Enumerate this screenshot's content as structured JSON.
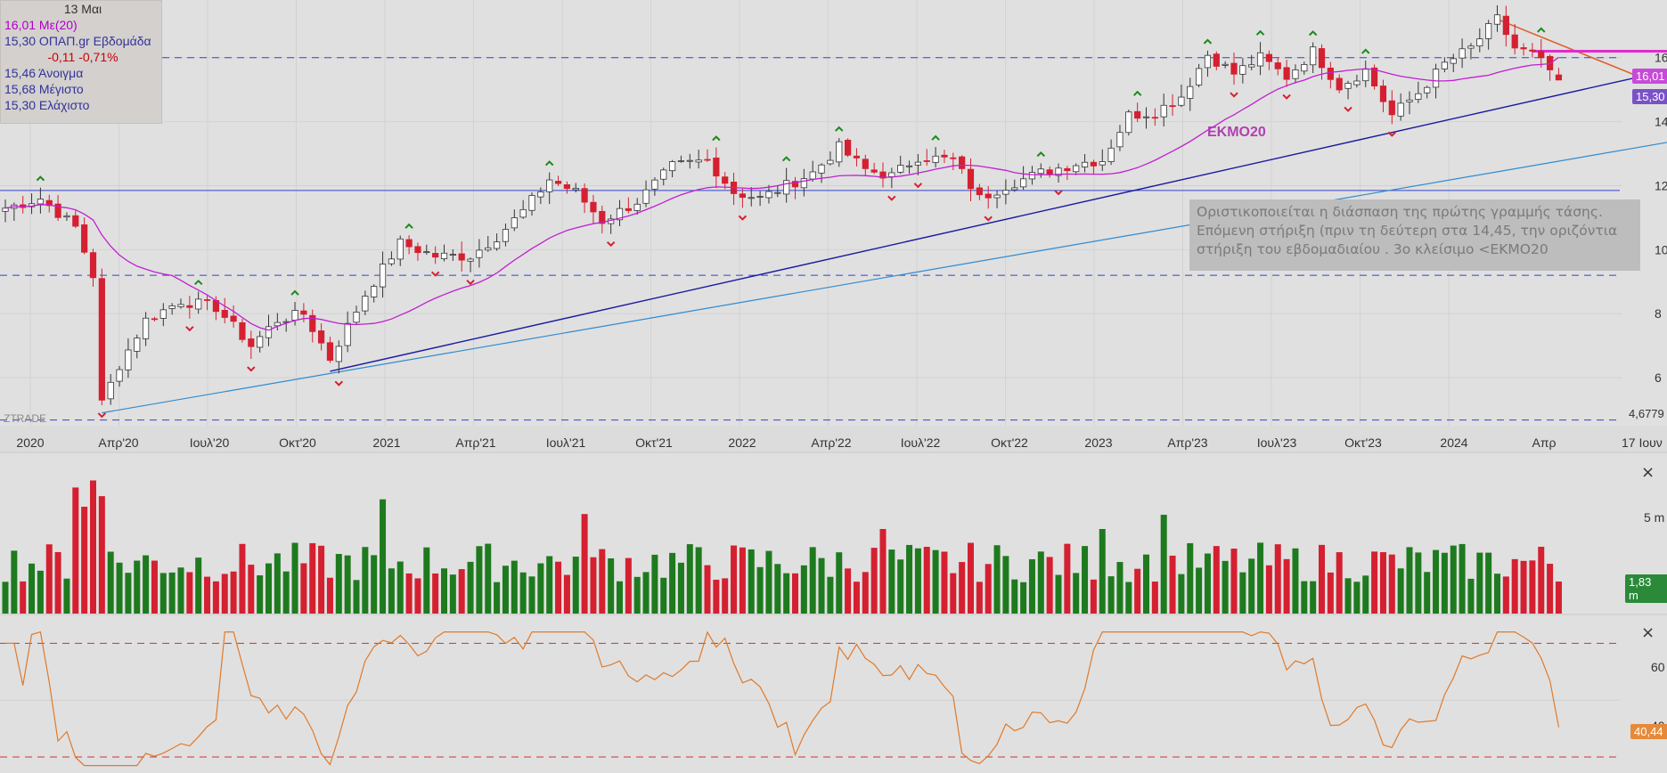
{
  "info_panel": {
    "date": "13 Μαι",
    "ma_line": "16,01 Με(20)",
    "close_line": "15,30 ΟΠΑΠ.gr Εβδομάδα",
    "change_line": "-0,11 -0,71%",
    "open_line": "15,46 Άνοιγμα",
    "high_line": "15,68 Μέγιστο",
    "low_line": "15,30 Ελάχιστο"
  },
  "annotations": {
    "emo_label": "ΕΚΜΟ20",
    "note_line1": "Οριστικοποιείται η διάσπαση της πρώτης γραμμής τάσης.",
    "note_line2": "Επόμενη στήριξη (πριν τη δεύτερη στα 14,45, την οριζόντια",
    "note_line3": "στήριξη του εβδομαδιαίου . 3ο κλείσιμο <ΕΚΜΟ20",
    "watermark": "ZTRADE"
  },
  "price_axis": {
    "ticks": [
      "16",
      "14",
      "12",
      "10",
      "8",
      "6"
    ],
    "min_label": "4,6779",
    "badge_ma": "16,01",
    "badge_close": "15,30"
  },
  "time_axis": {
    "labels": [
      "2020",
      "Απρ'20",
      "Ιουλ'20",
      "Οκτ'20",
      "2021",
      "Απρ'21",
      "Ιουλ'21",
      "Οκτ'21",
      "2022",
      "Απρ'22",
      "Ιουλ'22",
      "Οκτ'22",
      "2023",
      "Απρ'23",
      "Ιουλ'23",
      "Οκτ'23",
      "2024",
      "Απρ"
    ],
    "end_label": "17 Ιουν"
  },
  "volume_pane": {
    "tick": "5 m",
    "badge": "1,83 m",
    "close_icon": "×"
  },
  "rsi_pane": {
    "tick": "60",
    "tick_low": "40",
    "badge": "40,44",
    "close_icon": "×"
  },
  "colors": {
    "background": "#e0e0e0",
    "up": "#ffffff",
    "down": "#d42030",
    "vol_up": "#1e7a1e",
    "vol_down": "#d42030",
    "ma": "#c020d0",
    "trendline_dark": "#1a1aa0",
    "trendline_light": "#2f8ad0",
    "hline": "#3344cc",
    "rsi": "#e07a2a",
    "rsi_band": "#cc3333",
    "swing_high": "#1a8a1a",
    "swing_low": "#d42030"
  },
  "chart_data": {
    "type": "candlestick",
    "symbol": "ΟΠΑΠ.gr",
    "interval": "Εβδομάδα",
    "indicators": [
      "Με(20)",
      "Volume",
      "RSI"
    ],
    "last_bar": {
      "date": "13 Μαι",
      "open": 15.46,
      "high": 15.68,
      "low": 15.3,
      "close": 15.3,
      "change": -0.11,
      "change_pct": -0.71
    },
    "ma20_last": 16.01,
    "volume_last": "1,83 m",
    "rsi_last": 40.44,
    "price_ylim": [
      4.5,
      17.8
    ],
    "rsi_ylim": [
      25,
      77
    ],
    "rsi_bands": [
      70,
      30
    ],
    "horizontal_levels": [
      16.0,
      11.85,
      9.2,
      4.6779
    ],
    "close_anchors": [
      [
        0,
        11.3
      ],
      [
        4,
        11.6
      ],
      [
        8,
        10.7
      ],
      [
        10,
        9.2
      ],
      [
        11,
        5.2
      ],
      [
        13,
        6.4
      ],
      [
        16,
        7.8
      ],
      [
        20,
        8.4
      ],
      [
        24,
        8.2
      ],
      [
        28,
        7.0
      ],
      [
        31,
        7.8
      ],
      [
        34,
        8.0
      ],
      [
        37,
        6.6
      ],
      [
        41,
        8.6
      ],
      [
        45,
        10.2
      ],
      [
        49,
        9.8
      ],
      [
        53,
        9.8
      ],
      [
        56,
        10.4
      ],
      [
        59,
        11.2
      ],
      [
        62,
        12.2
      ],
      [
        65,
        11.8
      ],
      [
        68,
        10.9
      ],
      [
        72,
        11.5
      ],
      [
        76,
        12.6
      ],
      [
        80,
        12.8
      ],
      [
        83,
        11.8
      ],
      [
        86,
        11.6
      ],
      [
        89,
        12.0
      ],
      [
        92,
        12.4
      ],
      [
        95,
        13.2
      ],
      [
        98,
        12.5
      ],
      [
        101,
        12.3
      ],
      [
        104,
        12.9
      ],
      [
        108,
        12.8
      ],
      [
        111,
        11.6
      ],
      [
        114,
        12.0
      ],
      [
        118,
        12.4
      ],
      [
        122,
        12.7
      ],
      [
        125,
        12.8
      ],
      [
        128,
        14.2
      ],
      [
        131,
        14.3
      ],
      [
        134,
        14.8
      ],
      [
        137,
        16.1
      ],
      [
        140,
        15.5
      ],
      [
        143,
        16.0
      ],
      [
        146,
        15.4
      ],
      [
        149,
        16.2
      ],
      [
        152,
        15.1
      ],
      [
        155,
        15.6
      ],
      [
        158,
        14.2
      ],
      [
        161,
        14.9
      ],
      [
        164,
        15.8
      ],
      [
        167,
        16.3
      ],
      [
        170,
        17.2
      ],
      [
        172,
        16.3
      ],
      [
        174,
        16.1
      ],
      [
        176,
        15.6
      ],
      [
        177,
        15.3
      ]
    ]
  }
}
